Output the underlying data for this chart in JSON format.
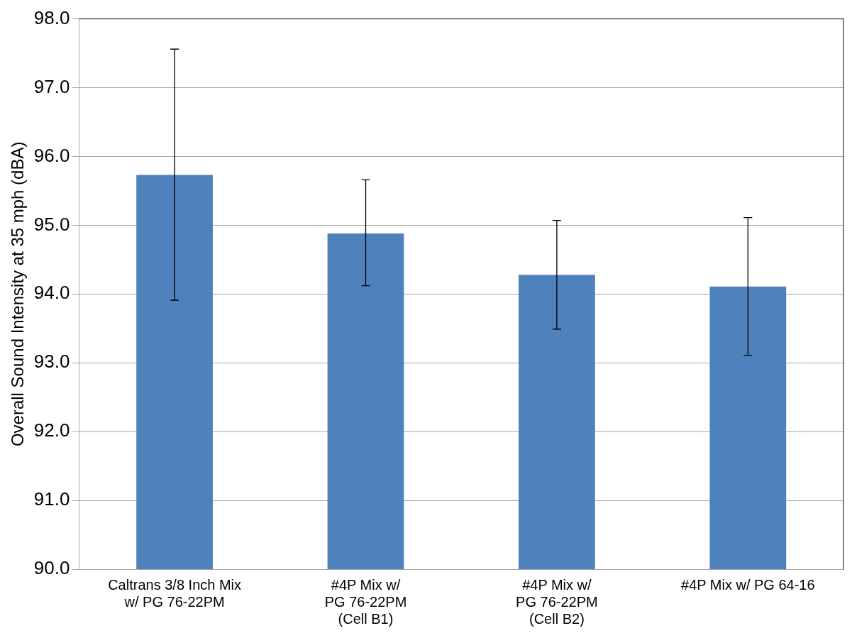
{
  "chart_data": {
    "type": "bar",
    "ylabel": "Overall Sound Intensity at 35 mph (dBA)",
    "categories": [
      "Caltrans 3/8 Inch Mix\nw/ PG 76-22PM",
      "#4P Mix w/\nPG 76-22PM\n(Cell B1)",
      "#4P Mix w/\nPG 76-22PM\n(Cell B2)",
      "#4P Mix w/ PG 64-16"
    ],
    "values": [
      95.73,
      94.88,
      94.28,
      94.11
    ],
    "errors": [
      [
        93.91,
        97.56
      ],
      [
        94.12,
        95.66
      ],
      [
        93.49,
        95.07
      ],
      [
        93.11,
        95.11
      ]
    ],
    "color": "#4f81bd",
    "ylim": [
      90,
      98
    ],
    "yticks": [
      {
        "value": 90,
        "label": "90.0"
      },
      {
        "value": 91,
        "label": "91.0"
      },
      {
        "value": 92,
        "label": "92.0"
      },
      {
        "value": 93,
        "label": "93.0"
      },
      {
        "value": 94,
        "label": "94.0"
      },
      {
        "value": 95,
        "label": "95.0"
      },
      {
        "value": 96,
        "label": "96.0"
      },
      {
        "value": 97,
        "label": "97.0"
      },
      {
        "value": 98,
        "label": "98.0"
      }
    ],
    "grid": "y",
    "legend": false
  }
}
